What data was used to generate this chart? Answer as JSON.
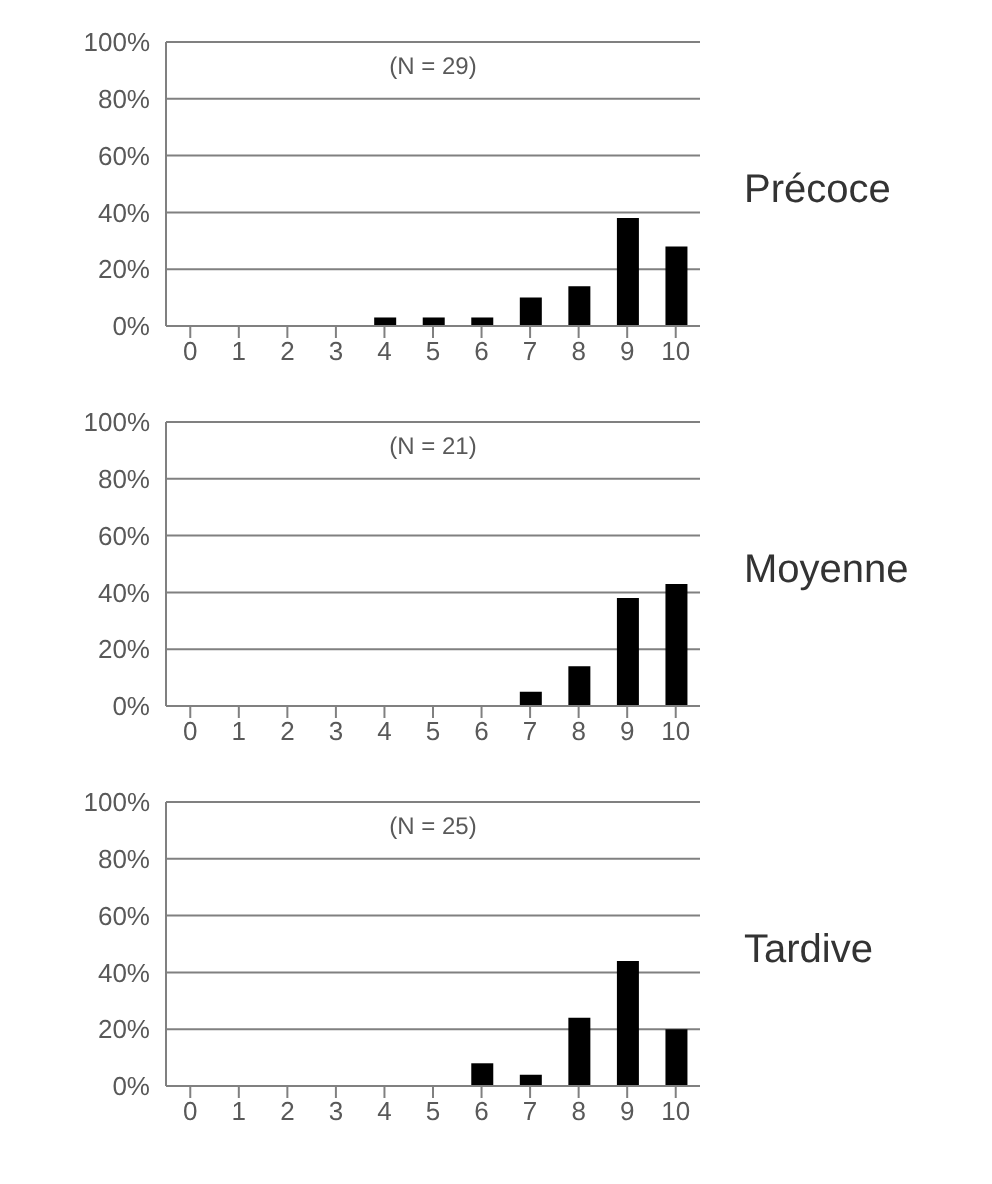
{
  "chart_data": [
    {
      "type": "bar",
      "annotations": [
        "(N = 29)",
        "Précoce"
      ],
      "categories": [
        "0",
        "1",
        "2",
        "3",
        "4",
        "5",
        "6",
        "7",
        "8",
        "9",
        "10"
      ],
      "values": [
        0,
        0,
        0,
        0,
        3,
        3,
        3,
        10,
        14,
        38,
        28
      ],
      "color": "#000000",
      "ylim": [
        0,
        100
      ],
      "yticks": [
        {
          "value": 0,
          "label": "0%"
        },
        {
          "value": 20,
          "label": "20%"
        },
        {
          "value": 40,
          "label": "40%"
        },
        {
          "value": 60,
          "label": "60%"
        },
        {
          "value": 80,
          "label": "80%"
        },
        {
          "value": 100,
          "label": "100%"
        }
      ],
      "grid": "y"
    },
    {
      "type": "bar",
      "annotations": [
        "(N = 21)",
        "Moyenne"
      ],
      "categories": [
        "0",
        "1",
        "2",
        "3",
        "4",
        "5",
        "6",
        "7",
        "8",
        "9",
        "10"
      ],
      "values": [
        0,
        0,
        0,
        0,
        0,
        0,
        0,
        5,
        14,
        38,
        43
      ],
      "color": "#000000",
      "ylim": [
        0,
        100
      ],
      "yticks": [
        {
          "value": 0,
          "label": "0%"
        },
        {
          "value": 20,
          "label": "20%"
        },
        {
          "value": 40,
          "label": "40%"
        },
        {
          "value": 60,
          "label": "60%"
        },
        {
          "value": 80,
          "label": "80%"
        },
        {
          "value": 100,
          "label": "100%"
        }
      ],
      "grid": "y"
    },
    {
      "type": "bar",
      "annotations": [
        "(N = 25)",
        "Tardive"
      ],
      "categories": [
        "0",
        "1",
        "2",
        "3",
        "4",
        "5",
        "6",
        "7",
        "8",
        "9",
        "10"
      ],
      "values": [
        0,
        0,
        0,
        0,
        0,
        0,
        8,
        4,
        24,
        44,
        20
      ],
      "color": "#000000",
      "ylim": [
        0,
        100
      ],
      "yticks": [
        {
          "value": 0,
          "label": "0%"
        },
        {
          "value": 20,
          "label": "20%"
        },
        {
          "value": 40,
          "label": "40%"
        },
        {
          "value": 60,
          "label": "60%"
        },
        {
          "value": 80,
          "label": "80%"
        },
        {
          "value": 100,
          "label": "100%"
        }
      ],
      "grid": "y"
    }
  ]
}
